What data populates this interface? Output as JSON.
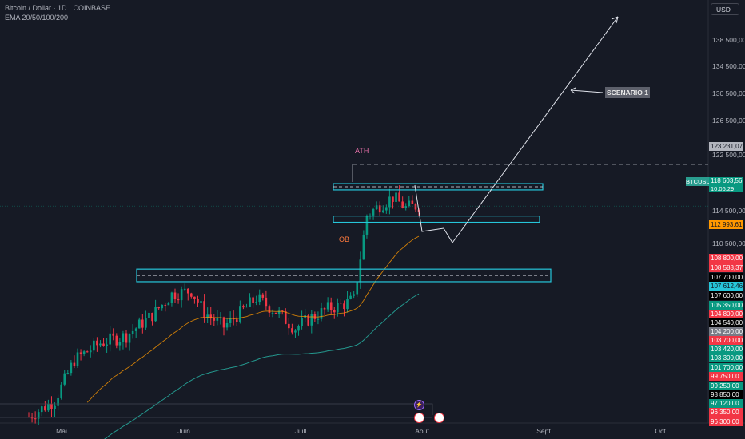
{
  "header": {
    "symbol_line": "Bitcoin / Dollar · 1D · COINBASE",
    "indicator_line": "EMA 20/50/100/200"
  },
  "price_scale": {
    "currency_button": "USD",
    "labels": [
      "138 500,00",
      "134 500,00",
      "130 500,00",
      "126 500,00",
      "122 500,00",
      "114 500,00",
      "110 500,00"
    ]
  },
  "time_axis": {
    "labels": [
      "Mai",
      "Juin",
      "Juill",
      "Août",
      "Sept",
      "Oct"
    ]
  },
  "annotations": {
    "ath": "ATH",
    "ob": "OB",
    "scenario": "SCENARIO 1"
  },
  "current_price": {
    "symbol": "BTCUSD",
    "price": "118 603,56",
    "countdown": "10:06:29"
  },
  "price_tags": [
    {
      "text": "123 231,07",
      "color": "#b2b5be",
      "text_color": "#131722"
    },
    {
      "text": "112 993,61",
      "color": "#ff9800",
      "text_color": "#131722"
    },
    {
      "text": "108 800,00",
      "color": "#f23645",
      "text_color": "#ffffff"
    },
    {
      "text": "108 588,37",
      "color": "#f23645",
      "text_color": "#ffffff"
    },
    {
      "text": "107 700,00",
      "color": "#000000",
      "text_color": "#ffffff"
    },
    {
      "text": "107 612,46",
      "color": "#26c6da",
      "text_color": "#131722"
    },
    {
      "text": "107 600,00",
      "color": "#000000",
      "text_color": "#ffffff"
    },
    {
      "text": "105 350,00",
      "color": "#089981",
      "text_color": "#ffffff"
    },
    {
      "text": "104 800,00",
      "color": "#f23645",
      "text_color": "#ffffff"
    },
    {
      "text": "104 540,00",
      "color": "#000000",
      "text_color": "#ffffff"
    },
    {
      "text": "104 200,00",
      "color": "#787b86",
      "text_color": "#ffffff"
    },
    {
      "text": "103 700,00",
      "color": "#f23645",
      "text_color": "#ffffff"
    },
    {
      "text": "103 420,00",
      "color": "#089981",
      "text_color": "#ffffff"
    },
    {
      "text": "103 300,00",
      "color": "#089981",
      "text_color": "#ffffff"
    },
    {
      "text": "101 700,00",
      "color": "#089981",
      "text_color": "#ffffff"
    },
    {
      "text": "99 750,00",
      "color": "#f23645",
      "text_color": "#ffffff"
    },
    {
      "text": "99 250,00",
      "color": "#089981",
      "text_color": "#ffffff"
    },
    {
      "text": "98 850,00",
      "color": "#000000",
      "text_color": "#ffffff"
    },
    {
      "text": "97 120,00",
      "color": "#089981",
      "text_color": "#ffffff"
    },
    {
      "text": "96 350,00",
      "color": "#f23645",
      "text_color": "#ffffff"
    },
    {
      "text": "96 300,00",
      "color": "#f23645",
      "text_color": "#ffffff"
    }
  ],
  "colors": {
    "background": "#161a25",
    "up": "#089981",
    "down": "#f23645",
    "zone": "#26c6da",
    "ema_orange": "#ff9800",
    "ema_teal": "#26a69a"
  },
  "chart_data": {
    "type": "candlestick",
    "series_name": "Bitcoin / Dollar",
    "timeframe": "1D",
    "ylim": [
      94500,
      141500
    ],
    "zones": [
      {
        "label": "OB",
        "low": 110200,
        "high": 111600
      },
      {
        "label": "",
        "low": 120400,
        "high": 121100
      },
      {
        "label": "",
        "low": 116800,
        "high": 117500
      }
    ],
    "ath_level": 123231.07
  }
}
